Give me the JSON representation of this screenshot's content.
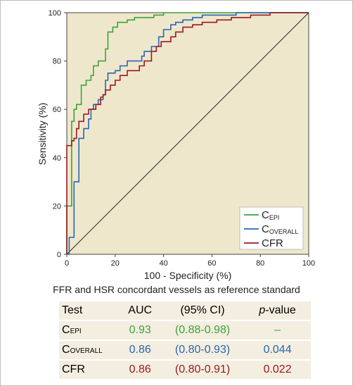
{
  "colors": {
    "c_epi": "#3aa43a",
    "c_overall": "#2a66b5",
    "cfr": "#9a1a24",
    "plot_background": "#efe7cc"
  },
  "chart_data": {
    "type": "line",
    "xlabel": "100 - Specificity (%)",
    "ylabel": "Sensitivity (%)",
    "xlim": [
      0,
      100
    ],
    "ylim": [
      0,
      100
    ],
    "x_ticks": [
      "0",
      "20",
      "40",
      "60",
      "80",
      "100"
    ],
    "y_ticks": [
      "0",
      "20",
      "40",
      "60",
      "80",
      "100"
    ],
    "grid": false,
    "legend_position": "bottom-right",
    "reference_line": [
      [
        0,
        0
      ],
      [
        100,
        100
      ]
    ],
    "series": [
      {
        "name": "C",
        "name_sub": "EPI",
        "color": "#3aa43a",
        "points": [
          [
            0,
            0
          ],
          [
            0,
            20
          ],
          [
            2,
            20
          ],
          [
            2,
            55
          ],
          [
            3,
            55
          ],
          [
            3,
            60
          ],
          [
            4,
            60
          ],
          [
            4,
            62
          ],
          [
            6,
            62
          ],
          [
            6,
            70
          ],
          [
            8,
            70
          ],
          [
            8,
            72
          ],
          [
            10,
            72
          ],
          [
            10,
            74
          ],
          [
            11,
            74
          ],
          [
            11,
            78
          ],
          [
            13,
            78
          ],
          [
            13,
            80
          ],
          [
            16,
            80
          ],
          [
            16,
            85
          ],
          [
            17,
            85
          ],
          [
            17,
            92
          ],
          [
            19,
            92
          ],
          [
            19,
            94
          ],
          [
            21,
            94
          ],
          [
            21,
            96
          ],
          [
            25,
            96
          ],
          [
            25,
            97
          ],
          [
            28,
            97
          ],
          [
            28,
            98
          ],
          [
            36,
            98
          ],
          [
            36,
            99
          ],
          [
            40,
            99
          ],
          [
            40,
            100
          ],
          [
            100,
            100
          ]
        ]
      },
      {
        "name": "C",
        "name_sub": "OVERALL",
        "color": "#2a66b5",
        "points": [
          [
            0,
            0
          ],
          [
            1,
            0
          ],
          [
            1,
            7
          ],
          [
            3,
            7
          ],
          [
            3,
            30
          ],
          [
            5,
            30
          ],
          [
            5,
            48
          ],
          [
            7,
            48
          ],
          [
            7,
            52
          ],
          [
            9,
            52
          ],
          [
            9,
            56
          ],
          [
            10,
            56
          ],
          [
            10,
            60
          ],
          [
            11,
            60
          ],
          [
            11,
            62
          ],
          [
            13,
            62
          ],
          [
            13,
            64
          ],
          [
            15,
            64
          ],
          [
            15,
            66
          ],
          [
            16,
            66
          ],
          [
            16,
            72
          ],
          [
            17,
            72
          ],
          [
            17,
            75
          ],
          [
            20,
            75
          ],
          [
            20,
            76
          ],
          [
            22,
            76
          ],
          [
            22,
            78
          ],
          [
            25,
            78
          ],
          [
            25,
            80
          ],
          [
            31,
            80
          ],
          [
            31,
            82
          ],
          [
            32,
            82
          ],
          [
            32,
            84
          ],
          [
            35,
            84
          ],
          [
            35,
            86
          ],
          [
            38,
            86
          ],
          [
            38,
            90
          ],
          [
            40,
            90
          ],
          [
            40,
            93
          ],
          [
            43,
            93
          ],
          [
            43,
            95
          ],
          [
            45,
            95
          ],
          [
            45,
            96
          ],
          [
            48,
            96
          ],
          [
            48,
            97
          ],
          [
            52,
            97
          ],
          [
            52,
            98
          ],
          [
            56,
            98
          ],
          [
            56,
            99
          ],
          [
            70,
            99
          ],
          [
            70,
            100
          ],
          [
            100,
            100
          ]
        ]
      },
      {
        "name": "CFR",
        "color": "#9a1a24",
        "points": [
          [
            0,
            0
          ],
          [
            0,
            45
          ],
          [
            2,
            45
          ],
          [
            2,
            47
          ],
          [
            3,
            47
          ],
          [
            3,
            48
          ],
          [
            4,
            48
          ],
          [
            4,
            52
          ],
          [
            5,
            52
          ],
          [
            5,
            55
          ],
          [
            7,
            55
          ],
          [
            7,
            58
          ],
          [
            9,
            58
          ],
          [
            9,
            60
          ],
          [
            12,
            60
          ],
          [
            12,
            62
          ],
          [
            14,
            62
          ],
          [
            14,
            65
          ],
          [
            15,
            65
          ],
          [
            15,
            66
          ],
          [
            16,
            66
          ],
          [
            16,
            68
          ],
          [
            18,
            68
          ],
          [
            18,
            70
          ],
          [
            20,
            70
          ],
          [
            20,
            72
          ],
          [
            22,
            72
          ],
          [
            22,
            74
          ],
          [
            25,
            74
          ],
          [
            25,
            76
          ],
          [
            30,
            76
          ],
          [
            30,
            78
          ],
          [
            32,
            78
          ],
          [
            32,
            80
          ],
          [
            35,
            80
          ],
          [
            35,
            84
          ],
          [
            37,
            84
          ],
          [
            37,
            86
          ],
          [
            39,
            86
          ],
          [
            39,
            88
          ],
          [
            43,
            88
          ],
          [
            43,
            90
          ],
          [
            45,
            90
          ],
          [
            45,
            92
          ],
          [
            48,
            92
          ],
          [
            48,
            94
          ],
          [
            52,
            94
          ],
          [
            52,
            95
          ],
          [
            56,
            95
          ],
          [
            56,
            96
          ],
          [
            62,
            96
          ],
          [
            62,
            97
          ],
          [
            68,
            97
          ],
          [
            68,
            98
          ],
          [
            76,
            98
          ],
          [
            76,
            99
          ],
          [
            84,
            99
          ],
          [
            84,
            100
          ],
          [
            100,
            100
          ]
        ]
      }
    ]
  },
  "caption": "FFR and HSR concordant vessels as reference standard",
  "table": {
    "headers": {
      "test": "Test",
      "auc": "AUC",
      "ci": "(95% CI)",
      "p_italic": "p",
      "p_rest": "-value"
    },
    "rows": [
      {
        "test": "C",
        "test_sub": "EPI",
        "auc": "0.93",
        "ci": "(0.88-0.98)",
        "p": "–",
        "color": "#3aa43a"
      },
      {
        "test": "C",
        "test_sub": "OVERALL",
        "auc": "0.86",
        "ci": "(0.80-0.93)",
        "p": "0.044",
        "color": "#2a66b5"
      },
      {
        "test": "CFR",
        "test_sub": "",
        "auc": "0.86",
        "ci": "(0.80-0.91)",
        "p": "0.022",
        "color": "#9a1a24"
      }
    ]
  }
}
